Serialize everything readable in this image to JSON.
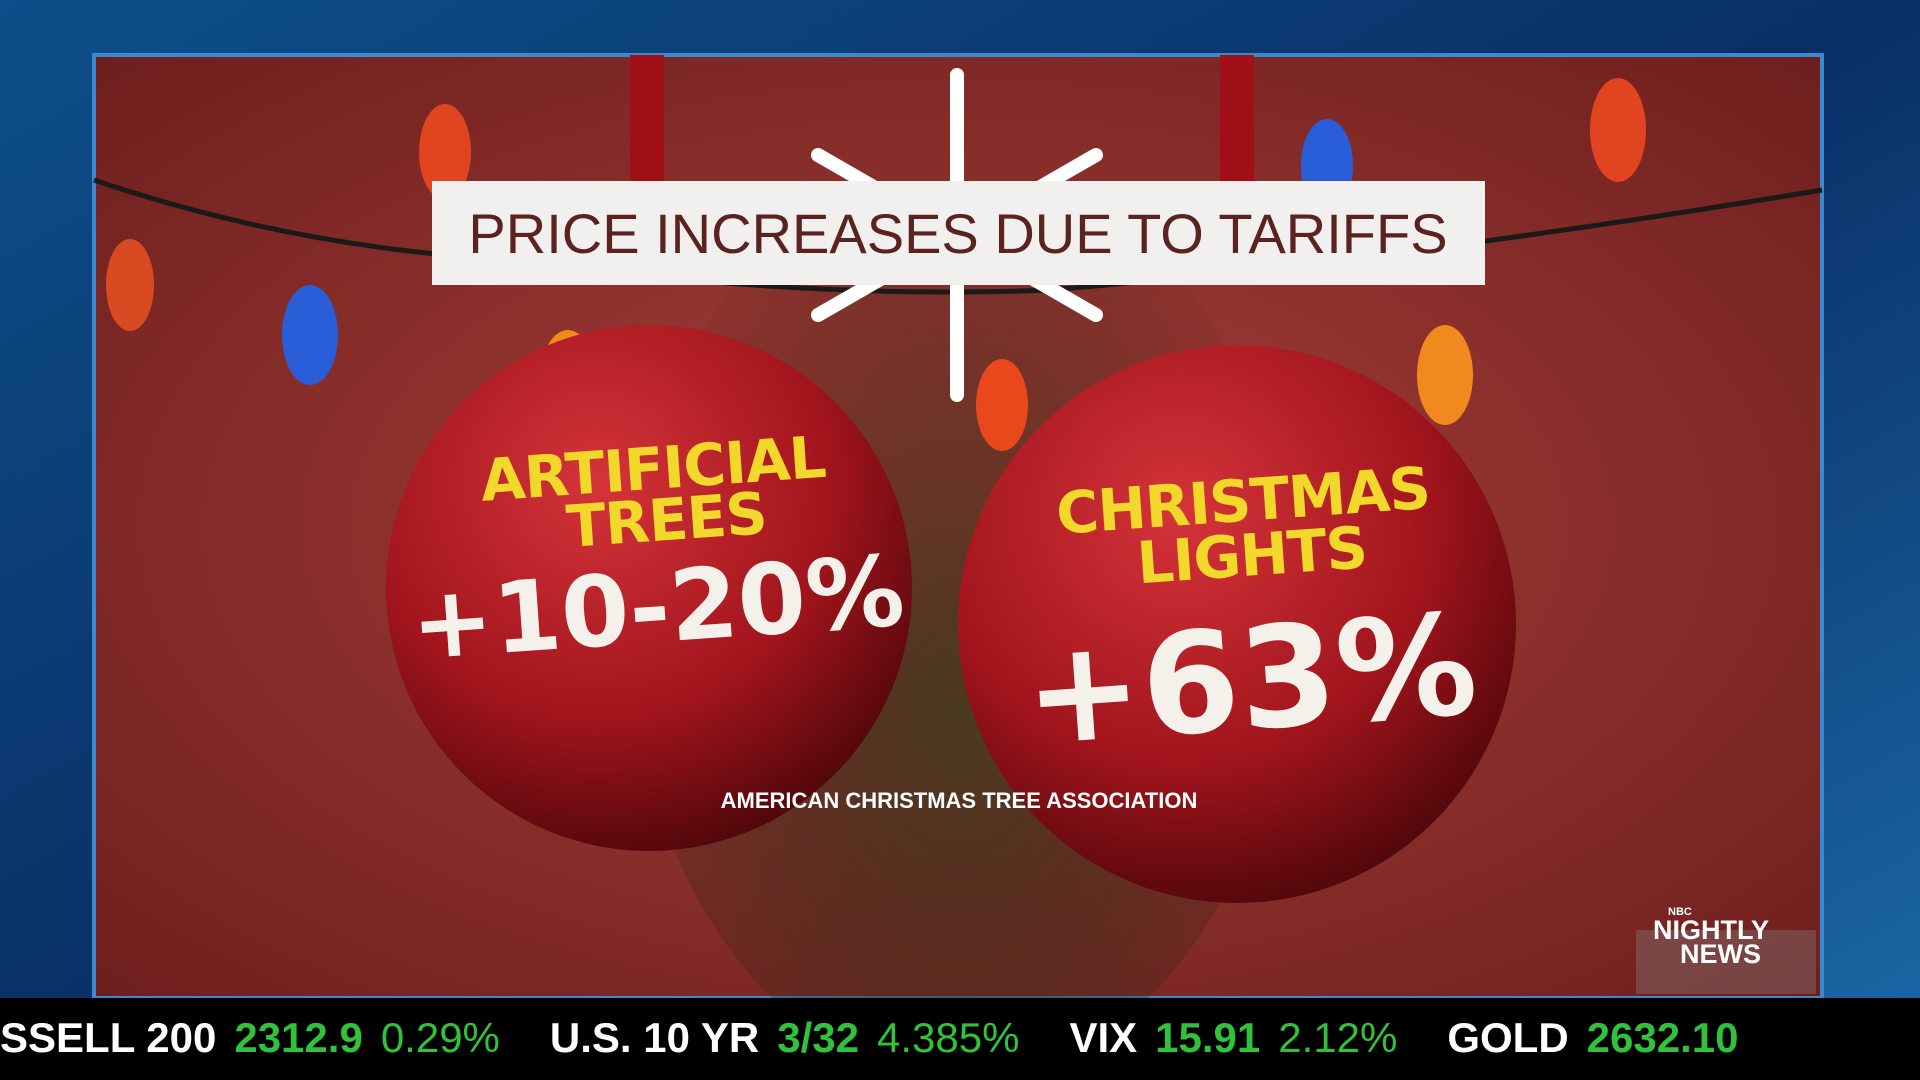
{
  "title": "PRICE INCREASES DUE TO TARIFFS",
  "ornaments": [
    {
      "label": [
        "ARTIFICIAL",
        "TREES"
      ],
      "change": "+10-20%"
    },
    {
      "label": [
        "CHRISTMAS",
        "LIGHTS"
      ],
      "change": "+63%"
    }
  ],
  "source": "AMERICAN CHRISTMAS TREE ASSOCIATION",
  "logo": {
    "network": "NBC",
    "show": [
      "NIGHTLY",
      "NEWS"
    ]
  },
  "ticker": [
    {
      "name": "SSELL 200",
      "value": "2312.9",
      "change": "0.29%"
    },
    {
      "name": "U.S. 10 YR",
      "value": "3/32",
      "change": "4.385%"
    },
    {
      "name": "VIX",
      "value": "15.91",
      "change": "2.12%"
    },
    {
      "name": "GOLD",
      "value": "2632.10"
    }
  ]
}
